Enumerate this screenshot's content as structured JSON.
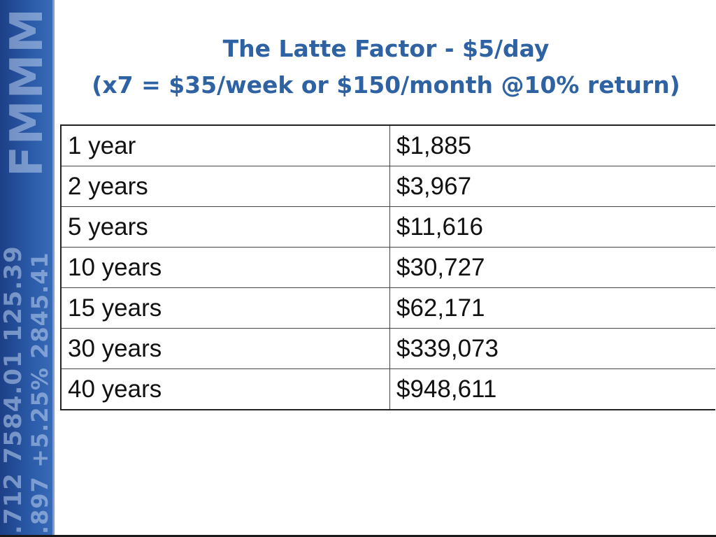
{
  "slide": {
    "title_line1": "The Latte Factor - $5/day",
    "title_line2": "(x7 = $35/week or $150/month @10% return)",
    "accent_color": "#2e62a3"
  },
  "decor": {
    "band_line1": ".712  7584.01  125.39",
    "band_line2": ".897  +5.25%  2845.41",
    "band_logo": "FMMM"
  },
  "table": {
    "rows": [
      {
        "period": "1 year",
        "amount": "$1,885"
      },
      {
        "period": "2 years",
        "amount": "$3,967"
      },
      {
        "period": "5 years",
        "amount": "$11,616"
      },
      {
        "period": "10 years",
        "amount": "$30,727"
      },
      {
        "period": "15 years",
        "amount": "$62,171"
      },
      {
        "period": "30 years",
        "amount": "$339,073"
      },
      {
        "period": "40 years",
        "amount": "$948,611"
      }
    ]
  }
}
